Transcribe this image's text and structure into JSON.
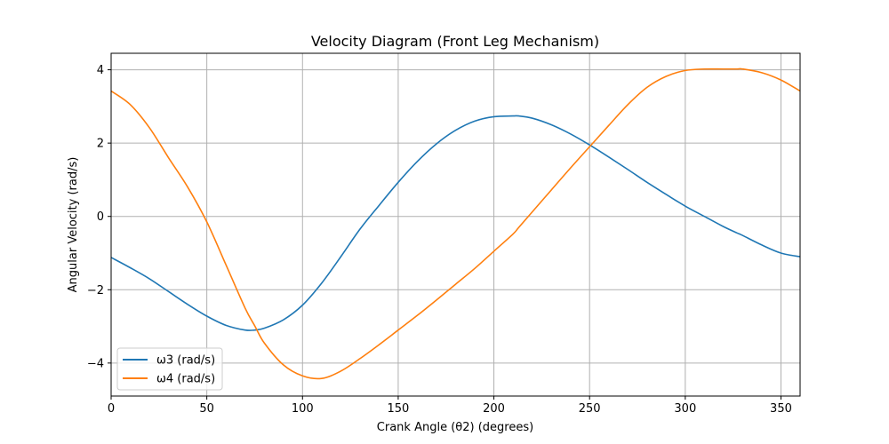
{
  "chart_data": {
    "type": "line",
    "title": "Velocity Diagram (Front Leg Mechanism)",
    "xlabel": "Crank Angle (θ2) (degrees)",
    "ylabel": "Angular Velocity (rad/s)",
    "xlim": [
      0,
      360
    ],
    "ylim": [
      -4.9,
      4.45
    ],
    "xticks": [
      0,
      50,
      100,
      150,
      200,
      250,
      300,
      350
    ],
    "xtick_labels": [
      "0",
      "50",
      "100",
      "150",
      "200",
      "250",
      "300",
      "350"
    ],
    "yticks": [
      -4,
      -2,
      0,
      2,
      4
    ],
    "ytick_labels": [
      "−4",
      "−2",
      "0",
      "2",
      "4"
    ],
    "grid": true,
    "legend_position": "lower-left",
    "x": [
      0,
      10,
      20,
      30,
      40,
      50,
      60,
      70,
      75,
      80,
      90,
      100,
      110,
      120,
      130,
      140,
      150,
      160,
      170,
      180,
      190,
      200,
      210,
      213,
      220,
      230,
      240,
      250,
      260,
      270,
      280,
      290,
      300,
      310,
      320,
      327,
      330,
      340,
      350,
      360
    ],
    "series": [
      {
        "name": "ω3 (rad/s)",
        "color": "#1f77b4",
        "values": [
          -1.12,
          -1.4,
          -1.7,
          -2.05,
          -2.4,
          -2.72,
          -2.97,
          -3.1,
          -3.1,
          -3.05,
          -2.82,
          -2.42,
          -1.82,
          -1.1,
          -0.35,
          0.3,
          0.93,
          1.5,
          1.98,
          2.35,
          2.6,
          2.72,
          2.74,
          2.74,
          2.68,
          2.5,
          2.25,
          1.95,
          1.62,
          1.28,
          0.93,
          0.6,
          0.28,
          0.0,
          -0.28,
          -0.45,
          -0.52,
          -0.78,
          -1.0,
          -1.1
        ]
      },
      {
        "name": "ω4 (rad/s)",
        "color": "#ff7f0e",
        "values": [
          3.42,
          3.05,
          2.42,
          1.6,
          0.8,
          -0.15,
          -1.32,
          -2.5,
          -2.98,
          -3.45,
          -4.05,
          -4.35,
          -4.42,
          -4.22,
          -3.88,
          -3.5,
          -3.1,
          -2.7,
          -2.28,
          -1.85,
          -1.42,
          -0.95,
          -0.48,
          -0.3,
          0.12,
          0.72,
          1.32,
          1.9,
          2.48,
          3.05,
          3.52,
          3.82,
          3.98,
          4.02,
          4.02,
          4.02,
          4.02,
          3.92,
          3.72,
          3.42
        ]
      }
    ]
  }
}
